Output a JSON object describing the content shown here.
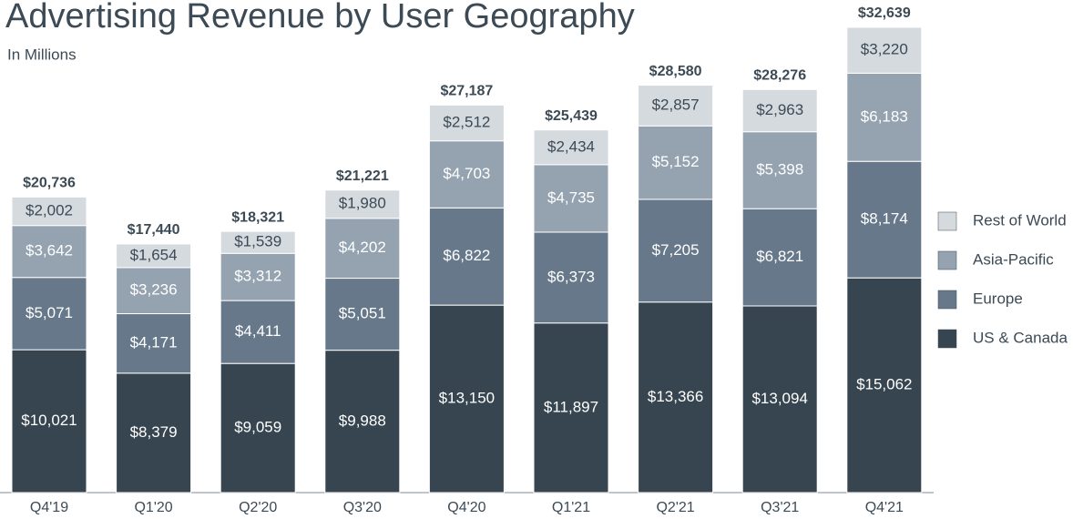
{
  "chart_data": {
    "type": "stacked-bar",
    "title": "Advertising Revenue by User Geography",
    "subtitle": "In Millions",
    "categories": [
      "Q4'19",
      "Q1'20",
      "Q2'20",
      "Q3'20",
      "Q4'20",
      "Q1'21",
      "Q2'21",
      "Q3'21",
      "Q4'21"
    ],
    "series": [
      {
        "name": "US & Canada",
        "color": "#36454f",
        "values": [
          10021,
          8379,
          9059,
          9988,
          13150,
          11897,
          13366,
          13094,
          15062
        ],
        "value_labels": [
          "$10,021",
          "$8,379",
          "$9,059",
          "$9,988",
          "$13,150",
          "$11,897",
          "$13,366",
          "$13,094",
          "$15,062"
        ]
      },
      {
        "name": "Europe",
        "color": "#67788a",
        "values": [
          5071,
          4171,
          4411,
          5051,
          6822,
          6373,
          7205,
          6821,
          8174
        ],
        "value_labels": [
          "$5,071",
          "$4,171",
          "$4,411",
          "$5,051",
          "$6,822",
          "$6,373",
          "$7,205",
          "$6,821",
          "$8,174"
        ]
      },
      {
        "name": "Asia-Pacific",
        "color": "#95a3b1",
        "values": [
          3642,
          3236,
          3312,
          4202,
          4703,
          4735,
          5152,
          5398,
          6183
        ],
        "value_labels": [
          "$3,642",
          "$3,236",
          "$3,312",
          "$4,202",
          "$4,703",
          "$4,735",
          "$5,152",
          "$5,398",
          "$6,183"
        ]
      },
      {
        "name": "Rest of World",
        "color": "#d5dadf",
        "values": [
          2002,
          1654,
          1539,
          1980,
          2512,
          2434,
          2857,
          2963,
          3220
        ],
        "value_labels": [
          "$2,002",
          "$1,654",
          "$1,539",
          "$1,980",
          "$2,512",
          "$2,434",
          "$2,857",
          "$2,963",
          "$3,220"
        ]
      }
    ],
    "totals": [
      20736,
      17440,
      18321,
      21221,
      27187,
      25439,
      28580,
      28276,
      32639
    ],
    "total_labels": [
      "$20,736",
      "$17,440",
      "$18,321",
      "$21,221",
      "$27,187",
      "$25,439",
      "$28,580",
      "$28,276",
      "$32,639"
    ]
  }
}
